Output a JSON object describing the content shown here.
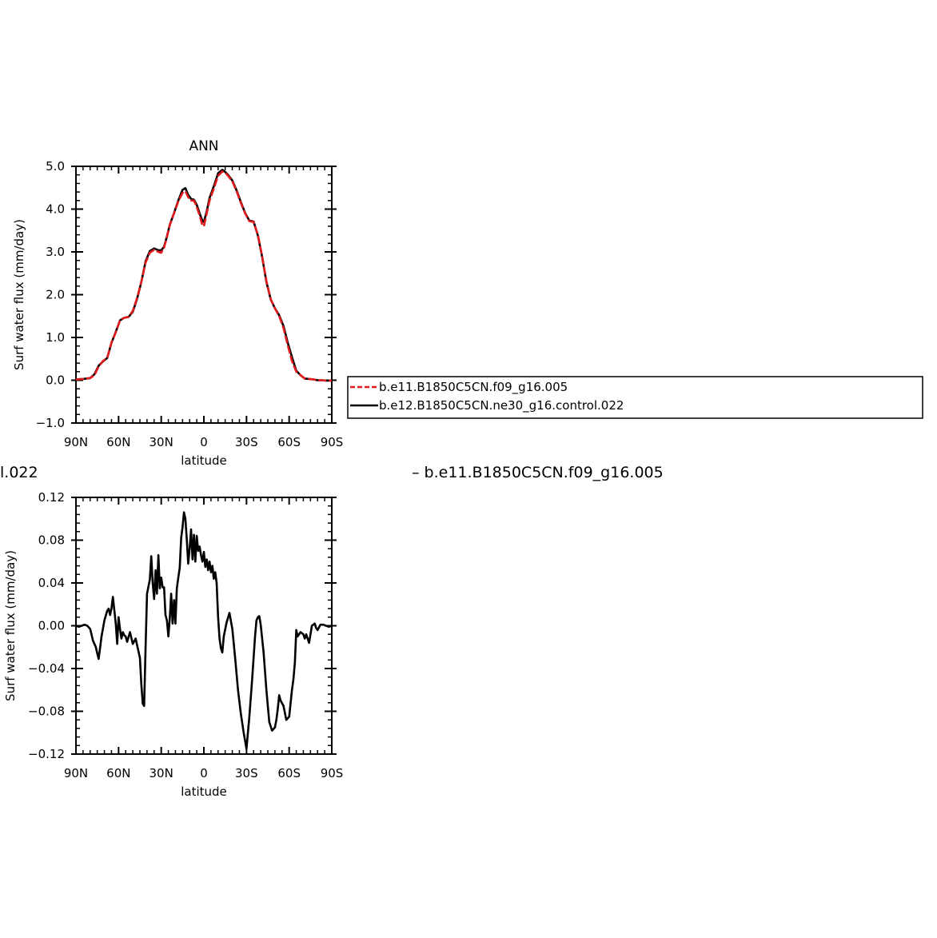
{
  "colors": {
    "model_a": "#e31a1c",
    "model_b": "#000000"
  },
  "cut_text": {
    "left": "l.022",
    "right": "– b.e11.B1850C5CN.f09_g16.005"
  },
  "chart_data": [
    {
      "type": "line",
      "title": "ANN",
      "xlabel": "latitude",
      "ylabel": "Surf  water flux (mm/day)",
      "x_direction": "90N to 90S",
      "xlim": [
        90,
        -90
      ],
      "ylim": [
        -1.0,
        5.0
      ],
      "xticks": [
        90,
        60,
        30,
        0,
        -30,
        -60,
        -90
      ],
      "xtick_labels": [
        "90N",
        "60N",
        "30N",
        "0",
        "30S",
        "60S",
        "90S"
      ],
      "yticks": [
        -1.0,
        0.0,
        1.0,
        2.0,
        3.0,
        4.0,
        5.0
      ],
      "ytick_labels": [
        "−1.0",
        "0.0",
        "1.0",
        "2.0",
        "3.0",
        "4.0",
        "5.0"
      ],
      "legend": {
        "placement": "right of plot"
      },
      "series": [
        {
          "name": "b.e11.B1850C5CN.f09_g16.005",
          "color": "#e31a1c",
          "dash": true,
          "x": [
            90,
            85,
            80,
            77,
            74,
            71,
            68,
            65,
            62,
            59,
            56,
            53,
            50,
            47,
            44,
            41,
            38,
            35,
            32,
            30,
            28,
            26,
            24,
            21,
            18,
            15,
            13,
            11,
            9,
            7,
            5,
            3,
            1,
            0,
            -2,
            -4,
            -7,
            -10,
            -13,
            -15,
            -17,
            -20,
            -23,
            -26,
            -29,
            -32,
            -35,
            -38,
            -41,
            -44,
            -47,
            -50,
            -53,
            -56,
            -59,
            -62,
            -65,
            -68,
            -71,
            -74,
            -77,
            -80,
            -83,
            -86,
            -90
          ],
          "y": [
            0.02,
            0.03,
            0.05,
            0.12,
            0.32,
            0.45,
            0.52,
            0.88,
            1.12,
            1.4,
            1.46,
            1.48,
            1.62,
            1.92,
            2.3,
            2.75,
            2.98,
            3.05,
            3.0,
            2.98,
            3.1,
            3.35,
            3.62,
            3.9,
            4.18,
            4.38,
            4.42,
            4.28,
            4.2,
            4.2,
            4.05,
            3.85,
            3.62,
            3.6,
            3.9,
            4.2,
            4.48,
            4.78,
            4.88,
            4.85,
            4.78,
            4.65,
            4.42,
            4.15,
            3.9,
            3.72,
            3.7,
            3.4,
            2.9,
            2.32,
            1.9,
            1.68,
            1.5,
            1.22,
            0.82,
            0.45,
            0.2,
            0.12,
            0.04,
            0.03,
            0.02,
            0.0,
            0.0,
            -0.01,
            -0.01
          ]
        },
        {
          "name": "b.e12.B1850C5CN.ne30_g16.control.022",
          "color": "#000000",
          "dash": false,
          "x": [
            90,
            85,
            80,
            77,
            74,
            71,
            68,
            65,
            62,
            59,
            56,
            53,
            50,
            47,
            44,
            41,
            38,
            35,
            32,
            30,
            28,
            26,
            24,
            21,
            18,
            15,
            13,
            11,
            9,
            7,
            5,
            3,
            1,
            0,
            -2,
            -4,
            -7,
            -10,
            -13,
            -15,
            -17,
            -20,
            -23,
            -26,
            -29,
            -32,
            -35,
            -38,
            -41,
            -44,
            -47,
            -50,
            -53,
            -56,
            -59,
            -62,
            -65,
            -68,
            -71,
            -74,
            -77,
            -80,
            -83,
            -86,
            -90
          ],
          "y": [
            0.02,
            0.03,
            0.05,
            0.14,
            0.34,
            0.44,
            0.52,
            0.87,
            1.13,
            1.4,
            1.46,
            1.48,
            1.6,
            1.9,
            2.3,
            2.78,
            3.02,
            3.08,
            3.04,
            3.04,
            3.12,
            3.36,
            3.63,
            3.91,
            4.2,
            4.45,
            4.49,
            4.33,
            4.24,
            4.22,
            4.1,
            3.9,
            3.72,
            3.7,
            3.95,
            4.26,
            4.53,
            4.84,
            4.92,
            4.87,
            4.8,
            4.67,
            4.44,
            4.17,
            3.91,
            3.73,
            3.71,
            3.38,
            2.88,
            2.3,
            1.89,
            1.68,
            1.52,
            1.27,
            0.88,
            0.54,
            0.22,
            0.12,
            0.04,
            0.03,
            0.02,
            0.0,
            0.0,
            -0.01,
            -0.01
          ]
        }
      ]
    },
    {
      "type": "line",
      "title": "",
      "xlabel": "latitude",
      "ylabel": "Surf  water flux (mm/day)",
      "x_direction": "90N to 90S",
      "xlim": [
        90,
        -90
      ],
      "ylim": [
        -0.12,
        0.12
      ],
      "xticks": [
        90,
        60,
        30,
        0,
        -30,
        -60,
        -90
      ],
      "xtick_labels": [
        "90N",
        "60N",
        "30N",
        "0",
        "30S",
        "60S",
        "90S"
      ],
      "yticks": [
        -0.12,
        -0.08,
        -0.04,
        0.0,
        0.04,
        0.08,
        0.12
      ],
      "ytick_labels": [
        "−0.12",
        "−0.08",
        "−0.04",
        "0.00",
        "0.04",
        "0.08",
        "0.12"
      ],
      "series": [
        {
          "color": "#000000",
          "x": [
            90,
            88,
            86,
            84,
            82,
            80,
            78,
            76,
            75,
            74,
            72,
            70,
            68,
            67,
            66,
            65,
            64,
            62,
            61,
            60,
            59,
            58,
            57,
            56,
            55,
            54,
            52,
            50,
            48,
            46,
            45,
            44,
            43,
            42,
            41,
            40,
            38,
            37,
            36,
            35,
            34,
            33,
            32,
            31,
            30,
            29,
            28,
            27,
            26,
            25,
            24,
            23,
            22,
            21,
            20,
            19,
            18,
            17,
            16,
            15,
            14,
            13,
            12,
            11,
            10,
            9,
            8,
            7,
            6,
            5,
            4,
            3,
            2,
            1,
            0,
            -1,
            -2,
            -3,
            -4,
            -5,
            -6,
            -7,
            -8,
            -9,
            -10,
            -11,
            -12,
            -13,
            -14,
            -16,
            -18,
            -20,
            -22,
            -24,
            -26,
            -28,
            -30,
            -32,
            -34,
            -36,
            -37,
            -38,
            -39,
            -40,
            -42,
            -44,
            -46,
            -48,
            -50,
            -51,
            -52,
            -53,
            -54,
            -56,
            -58,
            -60,
            -62,
            -63,
            -64,
            -65,
            -66,
            -68,
            -70,
            -71,
            -72,
            -74,
            -76,
            -78,
            -79,
            -80,
            -82,
            -84,
            -86,
            -88,
            -90
          ],
          "y": [
            0.0,
            -0.001,
            0.0,
            0.001,
            0.0,
            -0.003,
            -0.014,
            -0.02,
            -0.026,
            -0.031,
            -0.01,
            0.005,
            0.014,
            0.016,
            0.01,
            0.016,
            0.027,
            0.002,
            -0.017,
            0.008,
            -0.003,
            -0.012,
            -0.006,
            -0.009,
            -0.01,
            -0.015,
            -0.006,
            -0.017,
            -0.012,
            -0.024,
            -0.03,
            -0.055,
            -0.073,
            -0.075,
            -0.02,
            0.03,
            0.043,
            0.065,
            0.04,
            0.025,
            0.052,
            0.03,
            0.066,
            0.035,
            0.045,
            0.036,
            0.036,
            0.01,
            0.005,
            -0.01,
            0.006,
            0.03,
            0.002,
            0.024,
            0.002,
            0.035,
            0.045,
            0.054,
            0.082,
            0.092,
            0.106,
            0.1,
            0.08,
            0.058,
            0.072,
            0.09,
            0.062,
            0.085,
            0.06,
            0.084,
            0.07,
            0.074,
            0.066,
            0.06,
            0.069,
            0.055,
            0.062,
            0.052,
            0.06,
            0.05,
            0.056,
            0.044,
            0.05,
            0.04,
            0.008,
            -0.012,
            -0.021,
            -0.025,
            -0.01,
            0.003,
            0.012,
            -0.003,
            -0.03,
            -0.06,
            -0.082,
            -0.1,
            -0.115,
            -0.085,
            -0.05,
            -0.01,
            0.005,
            0.008,
            0.009,
            0.001,
            -0.025,
            -0.06,
            -0.09,
            -0.098,
            -0.095,
            -0.088,
            -0.078,
            -0.065,
            -0.07,
            -0.075,
            -0.088,
            -0.085,
            -0.06,
            -0.05,
            -0.035,
            -0.004,
            -0.01,
            -0.006,
            -0.008,
            -0.012,
            -0.008,
            -0.016,
            0.0,
            0.002,
            -0.002,
            -0.004,
            0.001,
            0.001,
            0.0,
            -0.001,
            0.0
          ]
        }
      ]
    }
  ]
}
